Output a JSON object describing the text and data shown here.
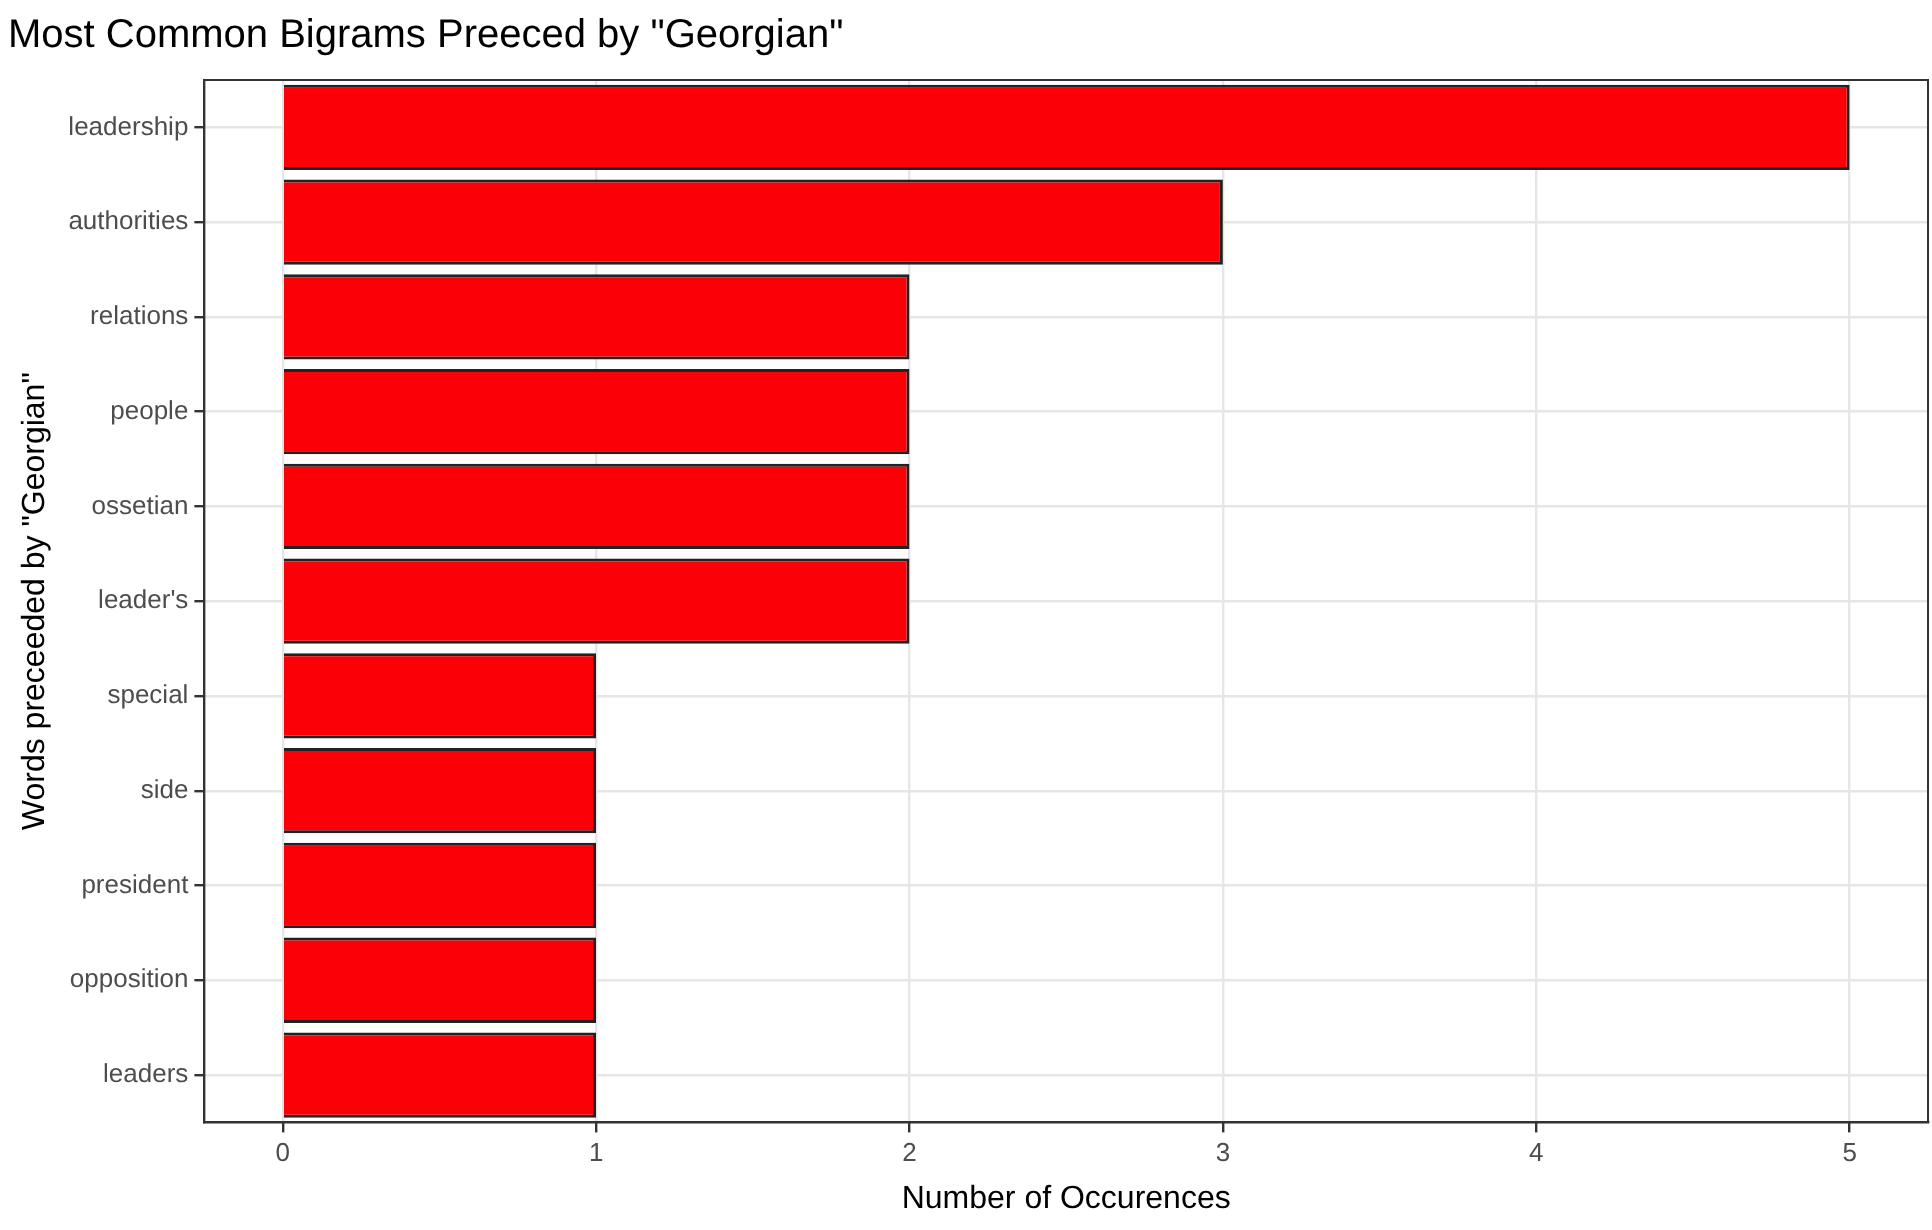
{
  "chart_data": {
    "type": "bar",
    "orientation": "horizontal",
    "title": "Most Common Bigrams Preeced by \"Georgian\"",
    "xlabel": "Number of Occurences",
    "ylabel": "Words preceeded by \"Georgian\"",
    "categories": [
      "leadership",
      "authorities",
      "relations",
      "people",
      "ossetian",
      "leader's",
      "special",
      "side",
      "president",
      "opposition",
      "leaders"
    ],
    "values": [
      5,
      3,
      2,
      2,
      2,
      2,
      1,
      1,
      1,
      1,
      1
    ],
    "color": "#fb0007",
    "xlim": [
      -0.25,
      5.25
    ],
    "xticks": [
      0,
      1,
      2,
      3,
      4,
      5
    ],
    "grid": true,
    "legend": false
  }
}
